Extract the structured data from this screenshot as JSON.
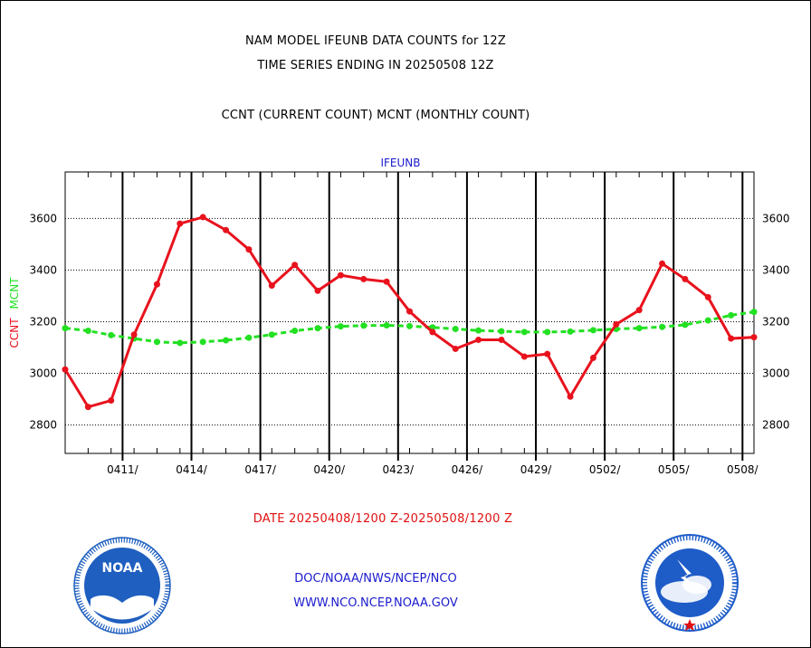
{
  "header": {
    "line1": "NAM MODEL IFEUNB DATA COUNTS for 12Z",
    "line2": "TIME SERIES ENDING IN 20250508 12Z",
    "line3": "CCNT (CURRENT COUNT) MCNT (MONTHLY COUNT)"
  },
  "chart_data": {
    "type": "line",
    "title": "IFEUNB",
    "ylabel_ccnt": "CCNT",
    "ylabel_mcnt": "MCNT",
    "xlabel": "DATE 20250408/1200 Z-20250508/1200 Z",
    "x_tick_labels": [
      "0411/",
      "0414/",
      "0417/",
      "0420/",
      "0423/",
      "0426/",
      "0429/",
      "0502/",
      "0505/",
      "0508/"
    ],
    "x_dates": [
      "0408",
      "0409",
      "0410",
      "0411",
      "0412",
      "0413",
      "0414",
      "0415",
      "0416",
      "0417",
      "0418",
      "0419",
      "0420",
      "0421",
      "0422",
      "0423",
      "0424",
      "0425",
      "0426",
      "0427",
      "0428",
      "0429",
      "0430",
      "0501",
      "0502",
      "0503",
      "0504",
      "0505",
      "0506",
      "0507",
      "0508"
    ],
    "y_ticks": [
      2800,
      3000,
      3200,
      3400,
      3600
    ],
    "ylim": [
      2690,
      3780
    ],
    "grid": true,
    "series": [
      {
        "name": "CCNT",
        "color": "#e8121d",
        "values": [
          3015,
          2870,
          2895,
          3150,
          3345,
          3580,
          3605,
          3555,
          3480,
          3340,
          3420,
          3320,
          3380,
          3365,
          3355,
          3240,
          3160,
          3095,
          3130,
          3130,
          3065,
          3075,
          2910,
          3060,
          3190,
          3245,
          3425,
          3365,
          3295,
          3135,
          3140
        ]
      },
      {
        "name": "MCNT",
        "color": "#22e022",
        "values": [
          3175,
          3165,
          3148,
          3135,
          3122,
          3118,
          3122,
          3128,
          3138,
          3150,
          3165,
          3175,
          3182,
          3185,
          3186,
          3183,
          3178,
          3172,
          3166,
          3163,
          3160,
          3160,
          3162,
          3167,
          3172,
          3175,
          3180,
          3188,
          3205,
          3225,
          3238
        ]
      }
    ]
  },
  "footer": {
    "line1": "DOC/NOAA/NWS/NCEP/NCO",
    "line2": "WWW.NCO.NCEP.NOAA.GOV"
  },
  "logos": {
    "left_name": "noaa-logo",
    "left_text": "NOAA",
    "right_name": "national-weather-service-logo",
    "colors": {
      "noaa_blue": "#1f5fbf",
      "nws_blue": "#1e5cc8",
      "nws_red": "#e01010"
    }
  }
}
